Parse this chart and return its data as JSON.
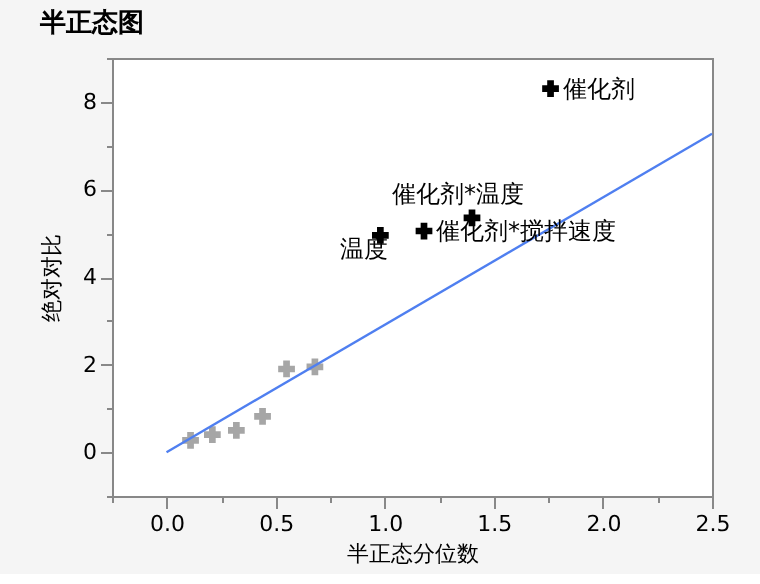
{
  "chart_data": {
    "type": "scatter",
    "title": "半正态图",
    "xlabel": "半正态分位数",
    "ylabel": "绝对对比",
    "series": [
      {
        "color": "#a6a6a6",
        "x": [
          0.11,
          0.21,
          0.32,
          0.44,
          0.55,
          0.68
        ],
        "values": [
          0.27,
          0.4,
          0.5,
          0.82,
          1.9,
          1.95
        ]
      },
      {
        "color": "#000000",
        "x": [
          0.98,
          1.18,
          1.4,
          1.76
        ],
        "values": [
          4.95,
          5.05,
          5.35,
          8.3
        ]
      },
      {
        "type": "line",
        "marker": "none",
        "color": "#4f7ff0",
        "x": [
          0,
          2.5
        ],
        "values": [
          0,
          7.27
        ]
      }
    ],
    "annotations": [
      {
        "text": "温度",
        "x": 0.98,
        "y": 4.95
      },
      {
        "text": "催化剂*搅拌速度",
        "x": 1.18,
        "y": 5.05
      },
      {
        "text": "催化剂*温度",
        "x": 1.4,
        "y": 5.35
      },
      {
        "text": "催化剂",
        "x": 1.76,
        "y": 8.3
      }
    ],
    "xlim": [
      -0.25,
      2.5
    ],
    "ylim": [
      -1,
      9
    ],
    "xticks": [
      {
        "value": -0.25,
        "label": null
      },
      {
        "value": 0,
        "label": "0.0"
      },
      {
        "value": 0.25,
        "label": null
      },
      0.5,
      {
        "value": 0.75,
        "label": null
      },
      {
        "value": 1,
        "label": "1.0"
      },
      {
        "value": 1.25,
        "label": null
      },
      1.5,
      {
        "value": 1.75,
        "label": null
      },
      {
        "value": 2,
        "label": "2.0"
      },
      {
        "value": 2.25,
        "label": null
      },
      2.5
    ],
    "yticks": [
      {
        "value": -1,
        "label": null
      },
      0,
      {
        "value": 1,
        "label": null
      },
      2,
      {
        "value": 3,
        "label": null
      },
      4,
      {
        "value": 5,
        "label": null
      },
      6,
      {
        "value": 7,
        "label": null
      },
      8,
      {
        "value": 9,
        "label": null
      }
    ],
    "marker": "cross",
    "grid": false
  }
}
